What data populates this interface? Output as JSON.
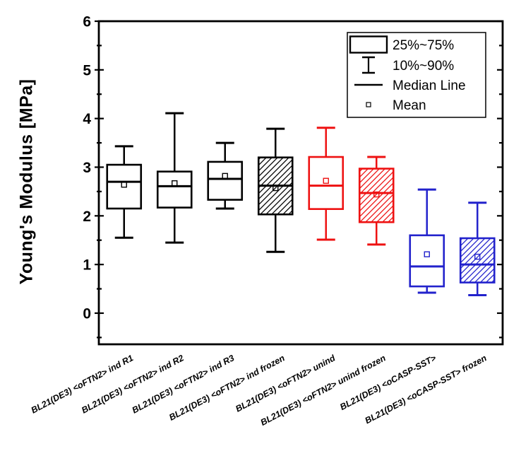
{
  "chart_data": {
    "type": "box",
    "title": "",
    "xlabel": "",
    "ylabel": "Young's Modulus [MPa]",
    "ylim": [
      -0.64,
      6
    ],
    "yticks": [
      0,
      1,
      2,
      3,
      4,
      5,
      6
    ],
    "minor_tick_step": 0.5,
    "grid": false,
    "legend": {
      "position": "top-right",
      "entries": [
        {
          "symbol": "box",
          "label": "25%~75%"
        },
        {
          "symbol": "whisker",
          "label": "10%~90%"
        },
        {
          "symbol": "line",
          "label": "Median Line"
        },
        {
          "symbol": "square",
          "label": "Mean"
        }
      ]
    },
    "categories": [
      "BL21(DE3) <oFTN2> ind R1",
      "BL21(DE3) <oFTN2> ind R2",
      "BL21(DE3) <oFTN2> ind R3",
      "BL21(DE3) <oFTN2> ind frozen",
      "BL21(DE3) <oFTN2> unind",
      "BL21(DE3) <oFTN2> unind frozen",
      "BL21(DE3) <oCASP-SST>",
      "BL21(DE3) <oCASP-SST> frozen"
    ],
    "series": [
      {
        "name": "BL21(DE3) <oFTN2> ind R1",
        "color": "#000000",
        "hatch": false,
        "p10": 1.55,
        "p25": 2.15,
        "median": 2.7,
        "p75": 3.05,
        "p90": 3.43,
        "mean": 2.64
      },
      {
        "name": "BL21(DE3) <oFTN2> ind R2",
        "color": "#000000",
        "hatch": false,
        "p10": 1.45,
        "p25": 2.17,
        "median": 2.61,
        "p75": 2.91,
        "p90": 4.11,
        "mean": 2.67
      },
      {
        "name": "BL21(DE3) <oFTN2> ind R3",
        "color": "#000000",
        "hatch": false,
        "p10": 2.15,
        "p25": 2.33,
        "median": 2.76,
        "p75": 3.11,
        "p90": 3.5,
        "mean": 2.82
      },
      {
        "name": "BL21(DE3) <oFTN2> ind frozen",
        "color": "#000000",
        "hatch": true,
        "p10": 1.26,
        "p25": 2.03,
        "median": 2.62,
        "p75": 3.2,
        "p90": 3.79,
        "mean": 2.57
      },
      {
        "name": "BL21(DE3) <oFTN2> unind",
        "color": "#ee1111",
        "hatch": false,
        "p10": 1.51,
        "p25": 2.14,
        "median": 2.62,
        "p75": 3.21,
        "p90": 3.81,
        "mean": 2.72
      },
      {
        "name": "BL21(DE3) <oFTN2> unind frozen",
        "color": "#ee1111",
        "hatch": true,
        "p10": 1.41,
        "p25": 1.87,
        "median": 2.47,
        "p75": 2.97,
        "p90": 3.21,
        "mean": 2.44
      },
      {
        "name": "BL21(DE3) <oCASP-SST>",
        "color": "#2222cc",
        "hatch": false,
        "p10": 0.42,
        "p25": 0.55,
        "median": 0.96,
        "p75": 1.6,
        "p90": 2.54,
        "mean": 1.21
      },
      {
        "name": "BL21(DE3) <oCASP-SST> frozen",
        "color": "#2222cc",
        "hatch": true,
        "p10": 0.37,
        "p25": 0.63,
        "median": 1.0,
        "p75": 1.54,
        "p90": 2.27,
        "mean": 1.16
      }
    ]
  },
  "colors": {
    "frame": "#000000",
    "background": "#ffffff",
    "black_series": "#000000",
    "red_series": "#ee1111",
    "blue_series": "#2222cc"
  }
}
